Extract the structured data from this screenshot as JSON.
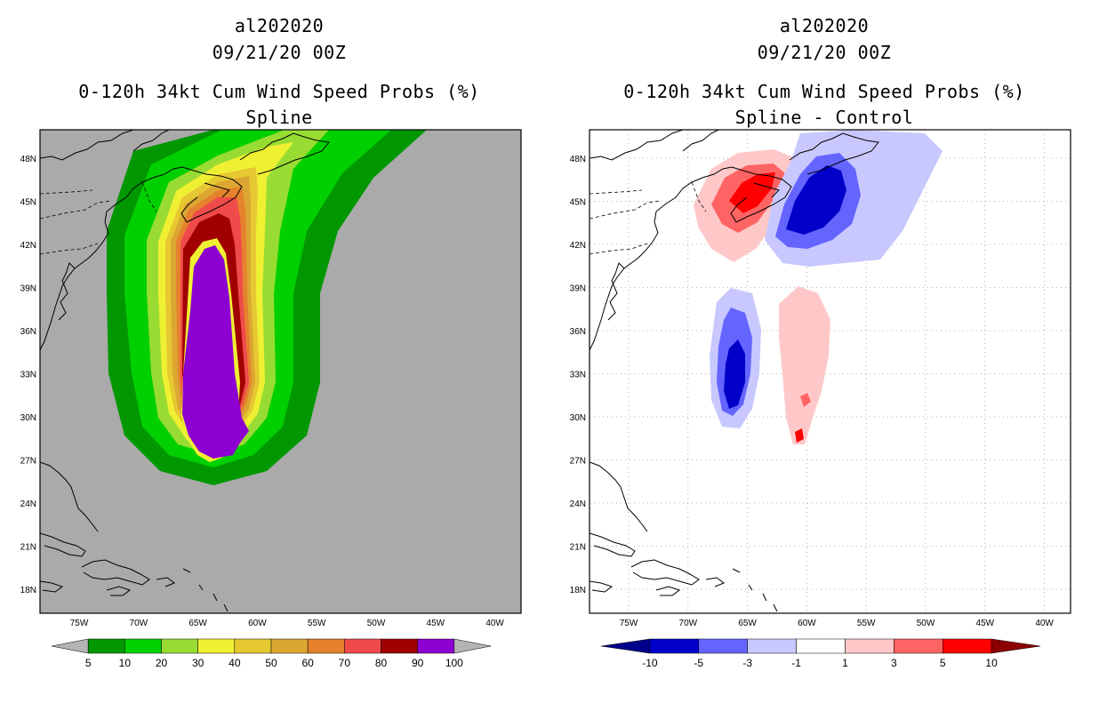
{
  "left_panel": {
    "storm_id": "al202020",
    "datetime": "09/21/20 00Z",
    "product": "0-120h 34kt Cum Wind Speed Probs (%)",
    "variant": "Spline",
    "lat_labels": [
      "48N",
      "45N",
      "42N",
      "39N",
      "36N",
      "33N",
      "30N",
      "27N",
      "24N",
      "21N",
      "18N"
    ],
    "lon_labels": [
      "75W",
      "70W",
      "65W",
      "60W",
      "55W",
      "50W",
      "45W",
      "40W"
    ],
    "colorbar": {
      "colors": [
        "#009700",
        "#00d000",
        "#98dc33",
        "#f0f032",
        "#e6c832",
        "#dca632",
        "#e6822d",
        "#f04b4b",
        "#a00000",
        "#8c00d2"
      ],
      "tick_labels": [
        "5",
        "10",
        "20",
        "30",
        "40",
        "50",
        "60",
        "70",
        "80",
        "90",
        "100"
      ],
      "left_arrow_color": "#b4b4b4",
      "right_arrow_color": "#b4b4b4"
    },
    "background_color": "#aaaaaa"
  },
  "right_panel": {
    "storm_id": "al202020",
    "datetime": "09/21/20 00Z",
    "product": "0-120h 34kt Cum Wind Speed Probs (%)",
    "variant": "Spline - Control",
    "lat_labels": [
      "48N",
      "45N",
      "42N",
      "39N",
      "36N",
      "33N",
      "30N",
      "27N",
      "24N",
      "21N",
      "18N"
    ],
    "lon_labels": [
      "75W",
      "70W",
      "65W",
      "60W",
      "55W",
      "50W",
      "45W",
      "40W"
    ],
    "colorbar": {
      "colors": [
        "#0000c8",
        "#6464ff",
        "#c8c8ff",
        "#ffffff",
        "#ffc8c8",
        "#ff6464",
        "#ff0000"
      ],
      "tick_labels": [
        "-10",
        "-5",
        "-3",
        "-1",
        "1",
        "3",
        "5",
        "10"
      ],
      "left_arrow_color": "#00008c",
      "right_arrow_color": "#8c0000"
    },
    "background_color": "#ffffff"
  }
}
